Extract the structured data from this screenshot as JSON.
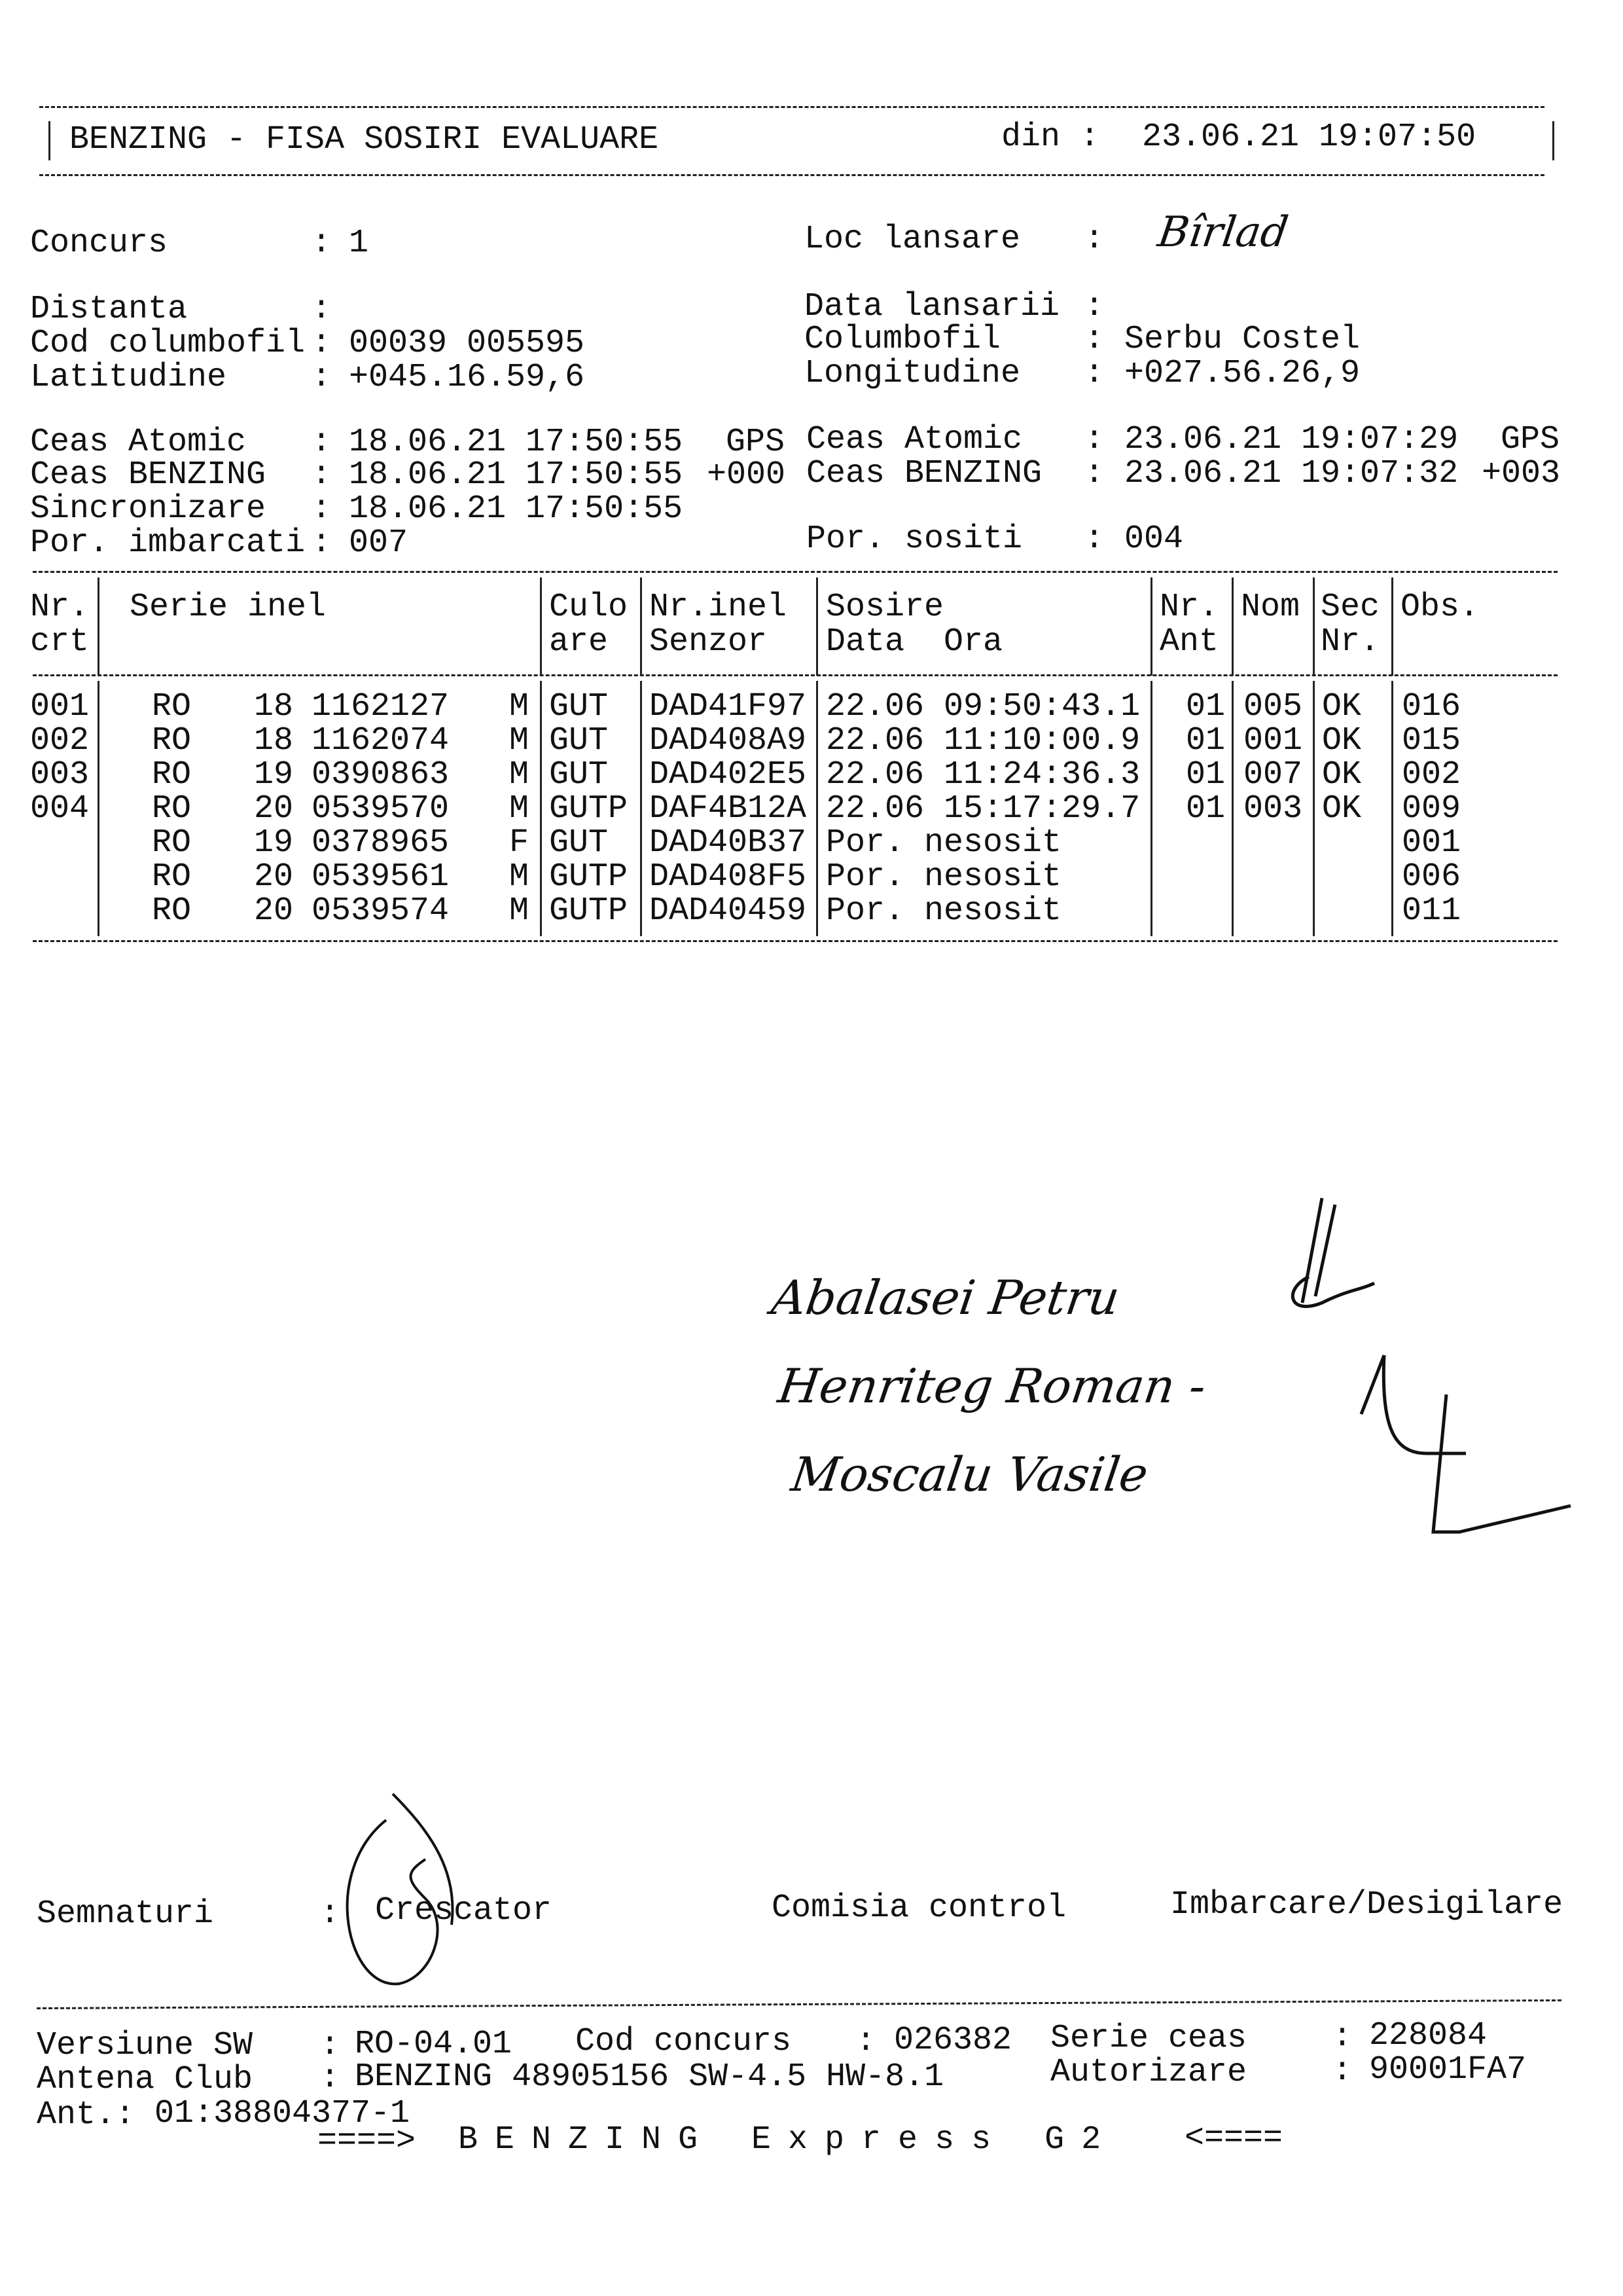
{
  "header": {
    "title": "BENZING - FISA SOSIRI EVALUARE",
    "din_label": "din :",
    "din_value": "23.06.21 19:07:50"
  },
  "info": {
    "concurs": {
      "label": "Concurs",
      "value": "1"
    },
    "loc_lansare": {
      "label": "Loc lansare",
      "value": "Bîrlad"
    },
    "distanta": {
      "label": "Distanta",
      "value": ""
    },
    "data_lansarii": {
      "label": "Data lansarii",
      "value": ""
    },
    "cod_columbofil": {
      "label": "Cod columbofil",
      "value": "00039 005595"
    },
    "columbofil": {
      "label": "Columbofil",
      "value": "Serbu Costel"
    },
    "latitudine": {
      "label": "Latitudine",
      "value": "+045.16.59,6"
    },
    "longitudine": {
      "label": "Longitudine",
      "value": "+027.56.26,9"
    },
    "ceas_atomic_start": {
      "label": "Ceas Atomic",
      "value": "18.06.21 17:50:55",
      "suffix": "GPS"
    },
    "ceas_benzing_start": {
      "label": "Ceas BENZING",
      "value": "18.06.21 17:50:55",
      "suffix": "+000"
    },
    "ceas_atomic_end": {
      "label": "Ceas Atomic",
      "value": "23.06.21 19:07:29",
      "suffix": "GPS"
    },
    "ceas_benzing_end": {
      "label": "Ceas BENZING",
      "value": "23.06.21 19:07:32",
      "suffix": "+003"
    },
    "sincronizare": {
      "label": "Sincronizare",
      "value": "18.06.21 17:50:55"
    },
    "por_imbarcati": {
      "label": "Por. imbarcati",
      "value": "007"
    },
    "por_sositi": {
      "label": "Por. sositi",
      "value": "004"
    }
  },
  "table": {
    "headers": {
      "nr_crt": [
        "Nr.",
        "crt"
      ],
      "serie_inel": [
        "Serie inel",
        ""
      ],
      "culoare": [
        "Culo",
        "are"
      ],
      "nr_inel_senzor": [
        "Nr.inel",
        "Senzor"
      ],
      "sosire": [
        "Sosire",
        "Data  Ora"
      ],
      "nr_ant": [
        "Nr.",
        "Ant"
      ],
      "nom": [
        "Nom",
        ""
      ],
      "sec_nr": [
        "Sec",
        "Nr."
      ],
      "obs": [
        "Obs.",
        ""
      ]
    },
    "rows": [
      {
        "nr": "001",
        "tara": "RO",
        "an": "18",
        "inel": "1162127",
        "sex": "M",
        "culoare": "GUT",
        "senzor": "DAD41F97",
        "sosire": "22.06 09:50:43.1",
        "ant": "01",
        "nom": "005",
        "sec": "OK",
        "obs": "016"
      },
      {
        "nr": "002",
        "tara": "RO",
        "an": "18",
        "inel": "1162074",
        "sex": "M",
        "culoare": "GUT",
        "senzor": "DAD408A9",
        "sosire": "22.06 11:10:00.9",
        "ant": "01",
        "nom": "001",
        "sec": "OK",
        "obs": "015"
      },
      {
        "nr": "003",
        "tara": "RO",
        "an": "19",
        "inel": "0390863",
        "sex": "M",
        "culoare": "GUT",
        "senzor": "DAD402E5",
        "sosire": "22.06 11:24:36.3",
        "ant": "01",
        "nom": "007",
        "sec": "OK",
        "obs": "002"
      },
      {
        "nr": "004",
        "tara": "RO",
        "an": "20",
        "inel": "0539570",
        "sex": "M",
        "culoare": "GUTP",
        "senzor": "DAF4B12A",
        "sosire": "22.06 15:17:29.7",
        "ant": "01",
        "nom": "003",
        "sec": "OK",
        "obs": "009"
      },
      {
        "nr": "",
        "tara": "RO",
        "an": "19",
        "inel": "0378965",
        "sex": "F",
        "culoare": "GUT",
        "senzor": "DAD40B37",
        "sosire": "Por. nesosit",
        "ant": "",
        "nom": "",
        "sec": "",
        "obs": "001"
      },
      {
        "nr": "",
        "tara": "RO",
        "an": "20",
        "inel": "0539561",
        "sex": "M",
        "culoare": "GUTP",
        "senzor": "DAD408F5",
        "sosire": "Por. nesosit",
        "ant": "",
        "nom": "",
        "sec": "",
        "obs": "006"
      },
      {
        "nr": "",
        "tara": "RO",
        "an": "20",
        "inel": "0539574",
        "sex": "M",
        "culoare": "GUTP",
        "senzor": "DAD40459",
        "sosire": "Por. nesosit",
        "ant": "",
        "nom": "",
        "sec": "",
        "obs": "011"
      }
    ]
  },
  "handwritten_names": [
    "Abalasei Petru",
    "Henriteg Roman -",
    "Moscalu Vasile"
  ],
  "signatures": {
    "label": "Semnaturi",
    "crescator": "Crescator",
    "comisia": "Comisia control",
    "imbarcare": "Imbarcare/Desigilare"
  },
  "footer": {
    "versiune_sw": {
      "label": "Versiune SW",
      "value": "RO-04.01"
    },
    "cod_concurs": {
      "label": "Cod concurs",
      "value": "026382"
    },
    "serie_ceas": {
      "label": "Serie ceas",
      "value": "228084"
    },
    "antena_club": {
      "label": "Antena Club",
      "value": "BENZING 48905156 SW-4.5 HW-8.1"
    },
    "autorizare": {
      "label": "Autorizare",
      "value": "90001FA7"
    },
    "ant": {
      "label": "Ant.:",
      "value": "01:38804377-1"
    },
    "banner_left": "====>",
    "banner_text": "BENZING Express G2",
    "banner_right": "<===="
  }
}
